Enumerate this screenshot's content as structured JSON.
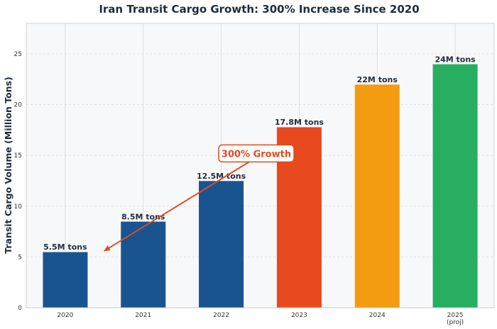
{
  "chart_data": {
    "type": "bar",
    "title": "Iran Transit Cargo Growth: 300% Increase Since 2020",
    "xlabel": "",
    "ylabel": "Transit Cargo Volume (Million Tons)",
    "categories": [
      "2020",
      "2021",
      "2022",
      "2023",
      "2024",
      "2025\n(proj)"
    ],
    "values": [
      5.5,
      8.5,
      12.5,
      17.8,
      22,
      24
    ],
    "data_labels": [
      "5.5M tons",
      "8.5M tons",
      "12.5M tons",
      "17.8M tons",
      "22M tons",
      "24M tons"
    ],
    "colors": [
      "#1a5490",
      "#1a5490",
      "#1a5490",
      "#e84a1f",
      "#f39c12",
      "#27ae60"
    ],
    "ylim": [
      0,
      28
    ],
    "yticks": [
      0,
      5,
      10,
      15,
      20,
      25
    ],
    "grid": true,
    "annotation": {
      "text": "300% Growth",
      "color": "#e34a1f",
      "arrow_from": {
        "x": 2.45,
        "y": 14.8
      },
      "arrow_to": {
        "x": 0.5,
        "y": 5.6
      },
      "text_at": {
        "x": 2.45,
        "y": 15.2
      }
    },
    "background": "#f7f8fa",
    "text_color": "#1f2d3d"
  }
}
